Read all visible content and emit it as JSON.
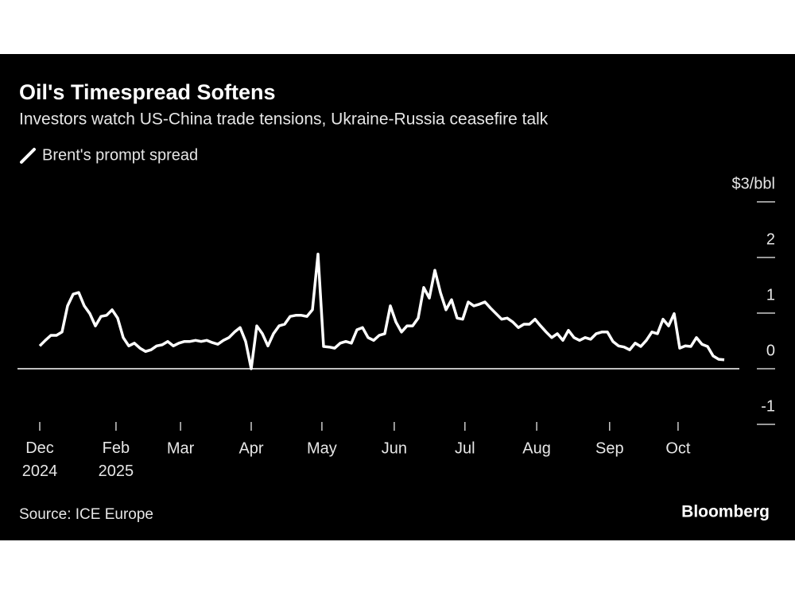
{
  "chart_data": {
    "type": "line",
    "title": "Oil's Timespread Softens",
    "subtitle": "Investors watch US-China trade tensions, Ukraine-Russia ceasefire talk",
    "source": "Source: ICE Europe",
    "brand": "Bloomberg",
    "series": [
      {
        "name": "Brent's prompt spread",
        "color": "#ffffff",
        "values": [
          0.41,
          0.51,
          0.6,
          0.6,
          0.66,
          1.13,
          1.34,
          1.37,
          1.13,
          0.99,
          0.77,
          0.94,
          0.96,
          1.06,
          0.91,
          0.56,
          0.41,
          0.46,
          0.37,
          0.31,
          0.34,
          0.41,
          0.43,
          0.49,
          0.41,
          0.46,
          0.49,
          0.49,
          0.51,
          0.49,
          0.51,
          0.47,
          0.44,
          0.51,
          0.56,
          0.66,
          0.74,
          0.49,
          0,
          0.77,
          0.63,
          0.41,
          0.63,
          0.77,
          0.8,
          0.94,
          0.96,
          0.96,
          0.94,
          1.06,
          2.06,
          0.4,
          0.39,
          0.37,
          0.46,
          0.49,
          0.46,
          0.7,
          0.74,
          0.56,
          0.51,
          0.6,
          0.63,
          1.13,
          0.84,
          0.66,
          0.77,
          0.77,
          0.91,
          1.46,
          1.27,
          1.77,
          1.37,
          1.06,
          1.24,
          0.91,
          0.89,
          1.2,
          1.13,
          1.16,
          1.2,
          1.09,
          0.99,
          0.89,
          0.91,
          0.84,
          0.74,
          0.8,
          0.8,
          0.89,
          0.77,
          0.66,
          0.56,
          0.63,
          0.51,
          0.69,
          0.56,
          0.51,
          0.56,
          0.53,
          0.63,
          0.66,
          0.66,
          0.49,
          0.41,
          0.39,
          0.34,
          0.46,
          0.4,
          0.51,
          0.66,
          0.63,
          0.89,
          0.77,
          0.99,
          0.37,
          0.41,
          0.4,
          0.56,
          0.44,
          0.4,
          0.23,
          0.17,
          0.16
        ]
      }
    ],
    "xlim": [
      0,
      123
    ],
    "xticks": [
      {
        "value": 0,
        "label": "Dec 2024"
      },
      {
        "value": 13.7,
        "label": "Feb 2025"
      },
      {
        "value": 25.3,
        "label": "Mar"
      },
      {
        "value": 38,
        "label": "Apr"
      },
      {
        "value": 50.7,
        "label": "May"
      },
      {
        "value": 63.7,
        "label": "Jun"
      },
      {
        "value": 76.4,
        "label": "Jul"
      },
      {
        "value": 89.3,
        "label": "Aug"
      },
      {
        "value": 102.4,
        "label": "Sep"
      },
      {
        "value": 114.7,
        "label": "Oct"
      }
    ],
    "ylim": [
      -1,
      3
    ],
    "yticks": [
      {
        "value": 3,
        "label": "$3/bbl"
      },
      2,
      1,
      0,
      -1
    ]
  }
}
